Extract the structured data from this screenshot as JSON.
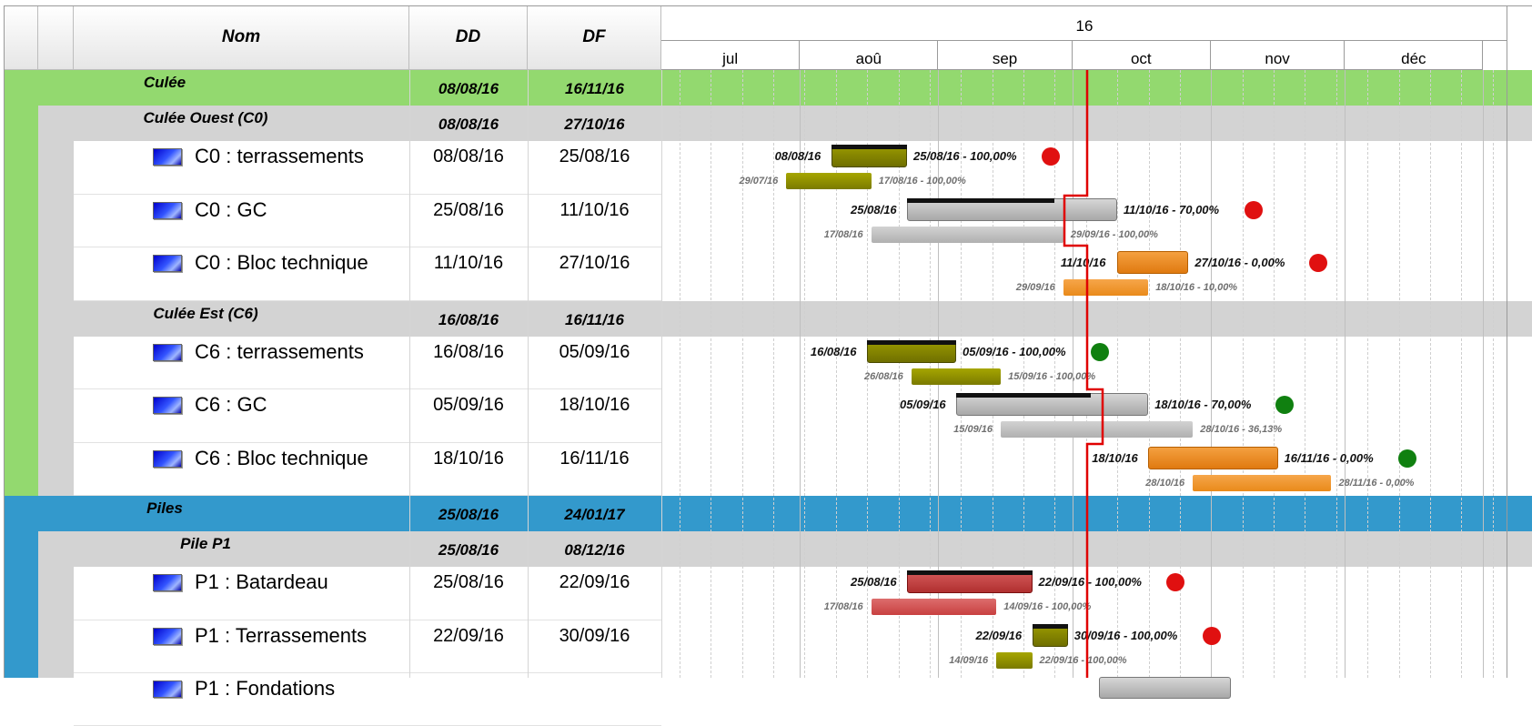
{
  "columns": {
    "name": "Nom",
    "start": "DD",
    "end": "DF"
  },
  "timeline": {
    "year": "16",
    "months": [
      "jul",
      "aoû",
      "sep",
      "oct",
      "nov",
      "déc"
    ]
  },
  "colors": {
    "culee_group": "#93d96f",
    "piles_group": "#3399cc",
    "subgroup": "#d3d3d3",
    "today_line": "#e00000",
    "status_late": "#e01010",
    "status_ok": "#108010",
    "bar_olive": "#7a7a00",
    "bar_gray": "#b0b0b0",
    "bar_orange": "#e98a1a",
    "bar_red": "#c84040"
  },
  "groups": [
    {
      "name": "Culée",
      "start": "08/08/16",
      "end": "16/11/16"
    },
    {
      "name": "Piles",
      "start": "25/08/16",
      "end": "24/01/17"
    }
  ],
  "subgroups": [
    {
      "name": "Culée Ouest (C0)",
      "start": "08/08/16",
      "end": "27/10/16"
    },
    {
      "name": "Culée Est (C6)",
      "start": "16/08/16",
      "end": "16/11/16"
    },
    {
      "name": "Pile P1",
      "start": "25/08/16",
      "end": "08/12/16"
    }
  ],
  "tasks": [
    {
      "name": "C0 : terrassements",
      "start": "08/08/16",
      "end": "25/08/16",
      "plan_label_start": "08/08/16",
      "plan_label_end": "25/08/16 - 100,00%",
      "base_label_start": "29/07/16",
      "base_label_end": "17/08/16 - 100,00%",
      "color": "olive",
      "status": "late"
    },
    {
      "name": "C0 : GC",
      "start": "25/08/16",
      "end": "11/10/16",
      "plan_label_start": "25/08/16",
      "plan_label_end": "11/10/16 - 70,00%",
      "base_label_start": "17/08/16",
      "base_label_end": "29/09/16 - 100,00%",
      "color": "gray",
      "status": "late"
    },
    {
      "name": "C0 : Bloc technique",
      "start": "11/10/16",
      "end": "27/10/16",
      "plan_label_start": "11/10/16",
      "plan_label_end": "27/10/16 - 0,00%",
      "base_label_start": "29/09/16",
      "base_label_end": "18/10/16 - 10,00%",
      "color": "orange",
      "status": "late"
    },
    {
      "name": "C6 : terrassements",
      "start": "16/08/16",
      "end": "05/09/16",
      "plan_label_start": "16/08/16",
      "plan_label_end": "05/09/16 - 100,00%",
      "base_label_start": "26/08/16",
      "base_label_end": "15/09/16 - 100,00%",
      "color": "olive",
      "status": "ok"
    },
    {
      "name": "C6 : GC",
      "start": "05/09/16",
      "end": "18/10/16",
      "plan_label_start": "05/09/16",
      "plan_label_end": "18/10/16 - 70,00%",
      "base_label_start": "15/09/16",
      "base_label_end": "28/10/16 - 36,13%",
      "color": "gray",
      "status": "ok"
    },
    {
      "name": "C6 : Bloc technique",
      "start": "18/10/16",
      "end": "16/11/16",
      "plan_label_start": "18/10/16",
      "plan_label_end": "16/11/16 - 0,00%",
      "base_label_start": "28/10/16",
      "base_label_end": "28/11/16 - 0,00%",
      "color": "orange",
      "status": "ok"
    },
    {
      "name": "P1 : Batardeau",
      "start": "25/08/16",
      "end": "22/09/16",
      "plan_label_start": "25/08/16",
      "plan_label_end": "22/09/16 - 100,00%",
      "base_label_start": "17/08/16",
      "base_label_end": "14/09/16 - 100,00%",
      "color": "red",
      "status": "late"
    },
    {
      "name": "P1 : Terrassements",
      "start": "22/09/16",
      "end": "30/09/16",
      "plan_label_start": "22/09/16",
      "plan_label_end": "30/09/16 - 100,00%",
      "base_label_start": "14/09/16",
      "base_label_end": "22/09/16 - 100,00%",
      "color": "olive",
      "status": "late"
    },
    {
      "name": "P1 : Fondations",
      "start": "",
      "end": "",
      "plan_label_start": "",
      "plan_label_end": "",
      "base_label_start": "",
      "base_label_end": "",
      "color": "gray",
      "status": "none"
    }
  ]
}
